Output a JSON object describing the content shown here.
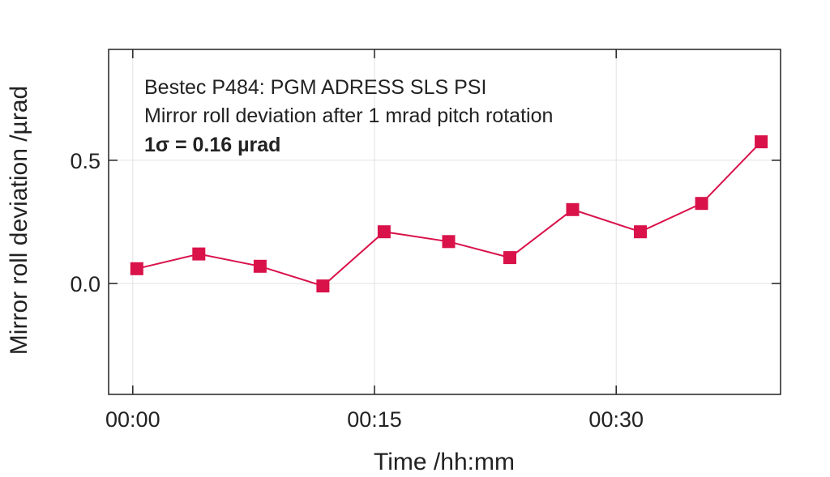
{
  "chart_data": {
    "type": "line",
    "xlabel": "Time /hh:mm",
    "ylabel": "Mirror roll deviation /µrad",
    "annotations": [
      "Bestec P484: PGM ADRESS SLS PSI",
      "Mirror roll deviation after 1 mrad pitch rotation",
      "1σ = 0.16 µrad"
    ],
    "x_ticks": [
      {
        "label": "00:00",
        "minutes": 0
      },
      {
        "label": "00:15",
        "minutes": 15
      },
      {
        "label": "00:30",
        "minutes": 30
      }
    ],
    "y_ticks": [
      {
        "label": "0.0",
        "value": 0.0
      },
      {
        "label": "0.5",
        "value": 0.5
      }
    ],
    "xlim": [
      -1.5,
      40.2
    ],
    "ylim": [
      -0.45,
      0.95
    ],
    "grid": true,
    "series": [
      {
        "marker": "square",
        "color": "#d9124a",
        "x": [
          0.25,
          4.1,
          7.9,
          11.8,
          15.6,
          19.6,
          23.4,
          27.3,
          31.5,
          35.3,
          39.0
        ],
        "y": [
          0.06,
          0.12,
          0.07,
          -0.01,
          0.21,
          0.17,
          0.105,
          0.3,
          0.21,
          0.325,
          0.575
        ]
      }
    ]
  }
}
